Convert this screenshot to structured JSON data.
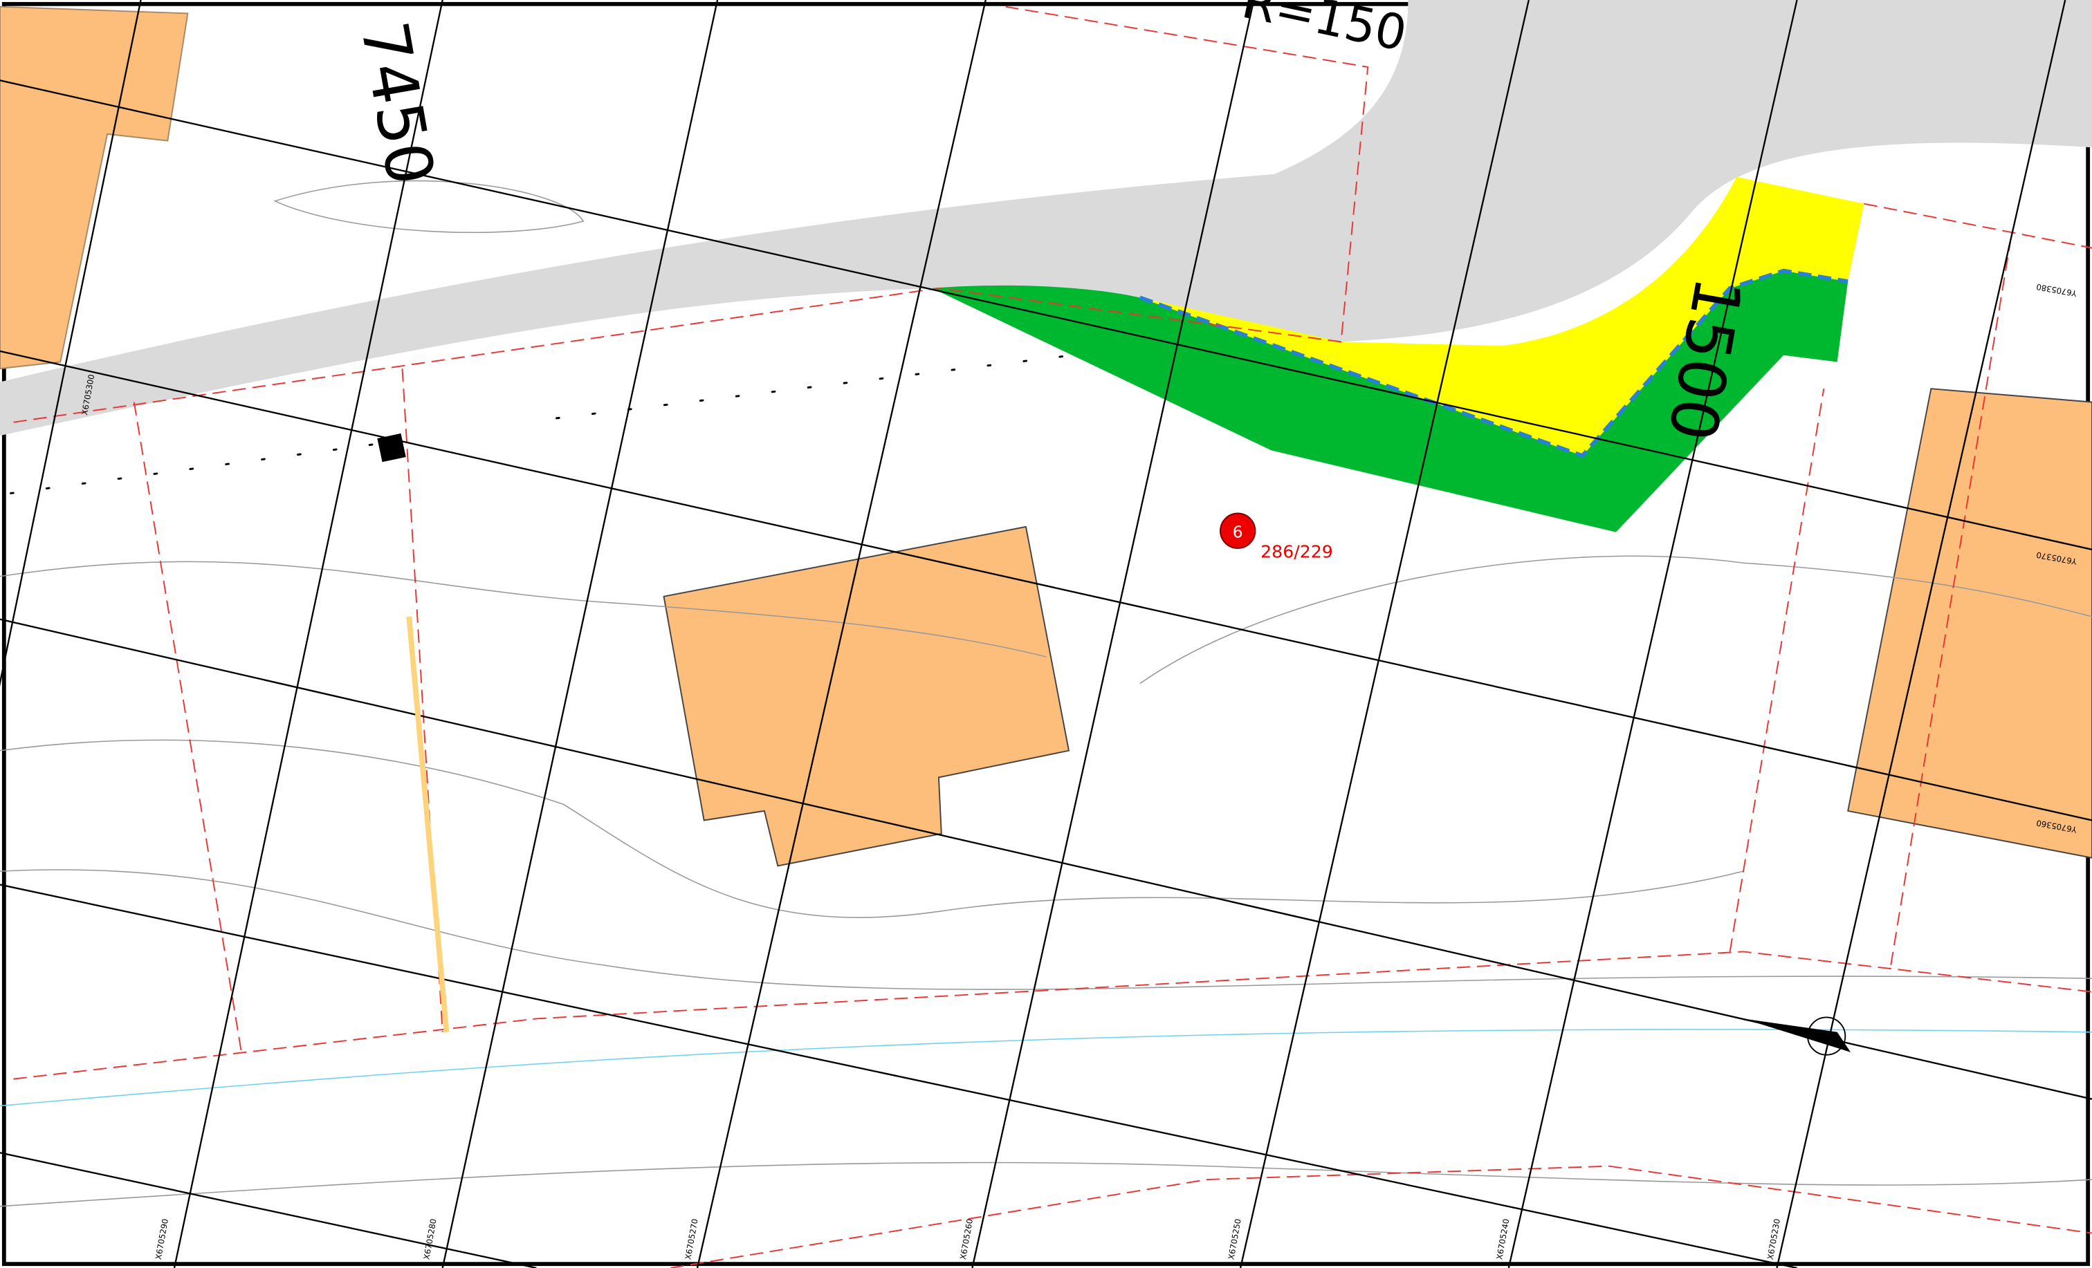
{
  "map": {
    "labels": {
      "station_left": "7450",
      "station_right": "1500",
      "curve": "R=150",
      "parcel_marker": "6",
      "parcel_id": "286/229"
    },
    "x_coords": [
      "X6705290",
      "X6705280",
      "X6705270",
      "X6705260",
      "X6705250",
      "X6705240",
      "X6705230"
    ],
    "y_coords": [
      "Y6705380",
      "Y6705370",
      "Y6705360"
    ],
    "left_coord": "X6705300"
  }
}
